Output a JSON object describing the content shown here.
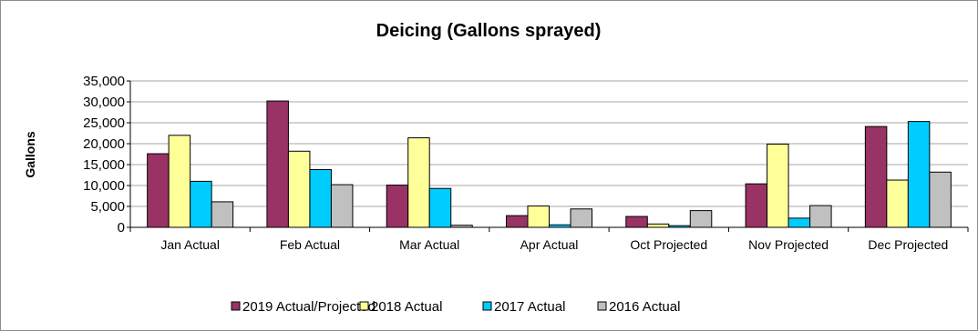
{
  "chart_data": {
    "type": "bar",
    "title": "Deicing (Gallons sprayed)",
    "xlabel": "",
    "ylabel": "Gallons",
    "ylim": [
      0,
      35000
    ],
    "yticks": [
      "0",
      "5,000",
      "10,000",
      "15,000",
      "20,000",
      "25,000",
      "30,000",
      "35,000"
    ],
    "grid": true,
    "legend_position": "bottom",
    "categories": [
      "Jan Actual",
      "Feb Actual",
      "Mar Actual",
      "Apr Actual",
      "Oct Projected",
      "Nov Projected",
      "Dec Projected"
    ],
    "series": [
      {
        "name": "2019 Actual/Projected",
        "color": "#993366",
        "values": [
          17600,
          30200,
          10100,
          2800,
          2600,
          10400,
          24100
        ]
      },
      {
        "name": "2018 Actual",
        "color": "#ffff99",
        "values": [
          22000,
          18200,
          21400,
          5100,
          800,
          19900,
          11300
        ]
      },
      {
        "name": "2017 Actual",
        "color": "#00ccff",
        "values": [
          11000,
          13800,
          9300,
          600,
          400,
          2200,
          25300
        ]
      },
      {
        "name": "2016 Actual",
        "color": "#c0c0c0",
        "values": [
          6100,
          10200,
          500,
          4400,
          4000,
          5200,
          13200
        ]
      }
    ]
  }
}
